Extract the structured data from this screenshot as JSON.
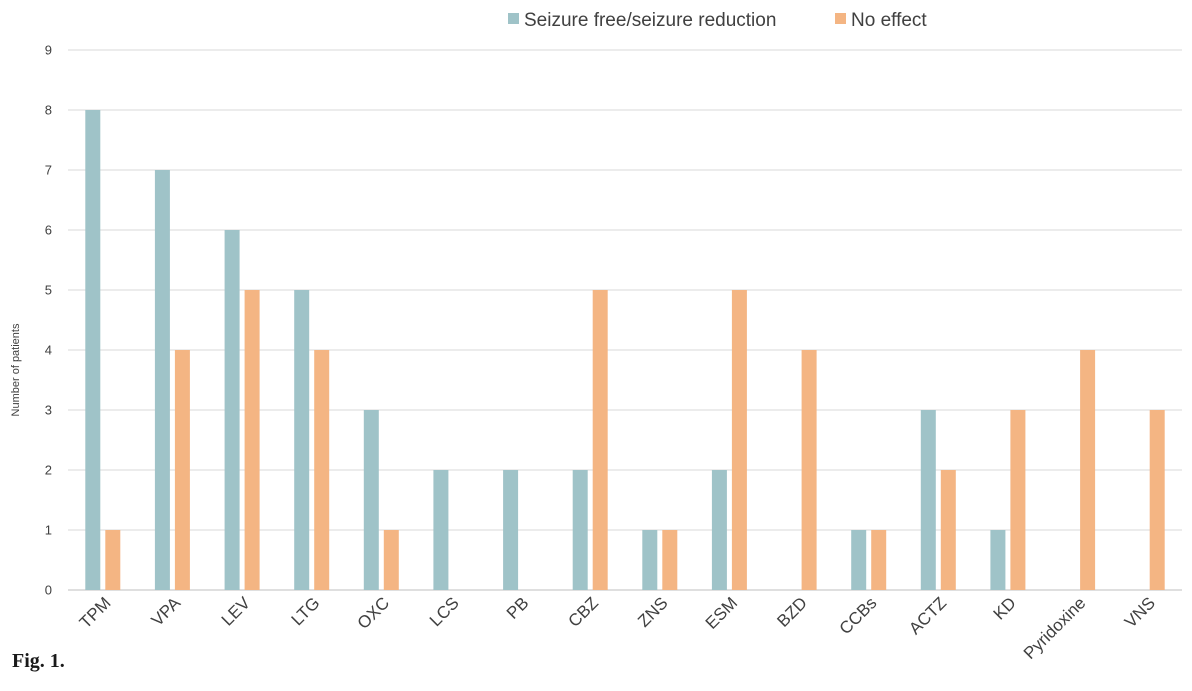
{
  "figure": {
    "label": "Fig. 1."
  },
  "chart_data": {
    "type": "bar",
    "title": "",
    "xlabel": "",
    "ylabel": "Number of patients",
    "ylim": [
      0,
      9
    ],
    "yticks": [
      0,
      1,
      2,
      3,
      4,
      5,
      6,
      7,
      8,
      9
    ],
    "grid": true,
    "legend_position": "top-right",
    "categories": [
      "TPM",
      "VPA",
      "LEV",
      "LTG",
      "OXC",
      "LCS",
      "PB",
      "CBZ",
      "ZNS",
      "ESM",
      "BZD",
      "CCBs",
      "ACTZ",
      "KD",
      "Pyridoxine",
      "VNS"
    ],
    "series": [
      {
        "name": "Seizure free/seizure reduction",
        "color": "#9fc3c8",
        "values": [
          8,
          7,
          6,
          5,
          3,
          2,
          2,
          2,
          1,
          2,
          0,
          1,
          3,
          1,
          0,
          0
        ]
      },
      {
        "name": "No effect",
        "color": "#f4b583",
        "values": [
          1,
          4,
          5,
          4,
          1,
          0,
          0,
          5,
          1,
          5,
          4,
          1,
          2,
          3,
          4,
          3
        ]
      }
    ]
  }
}
